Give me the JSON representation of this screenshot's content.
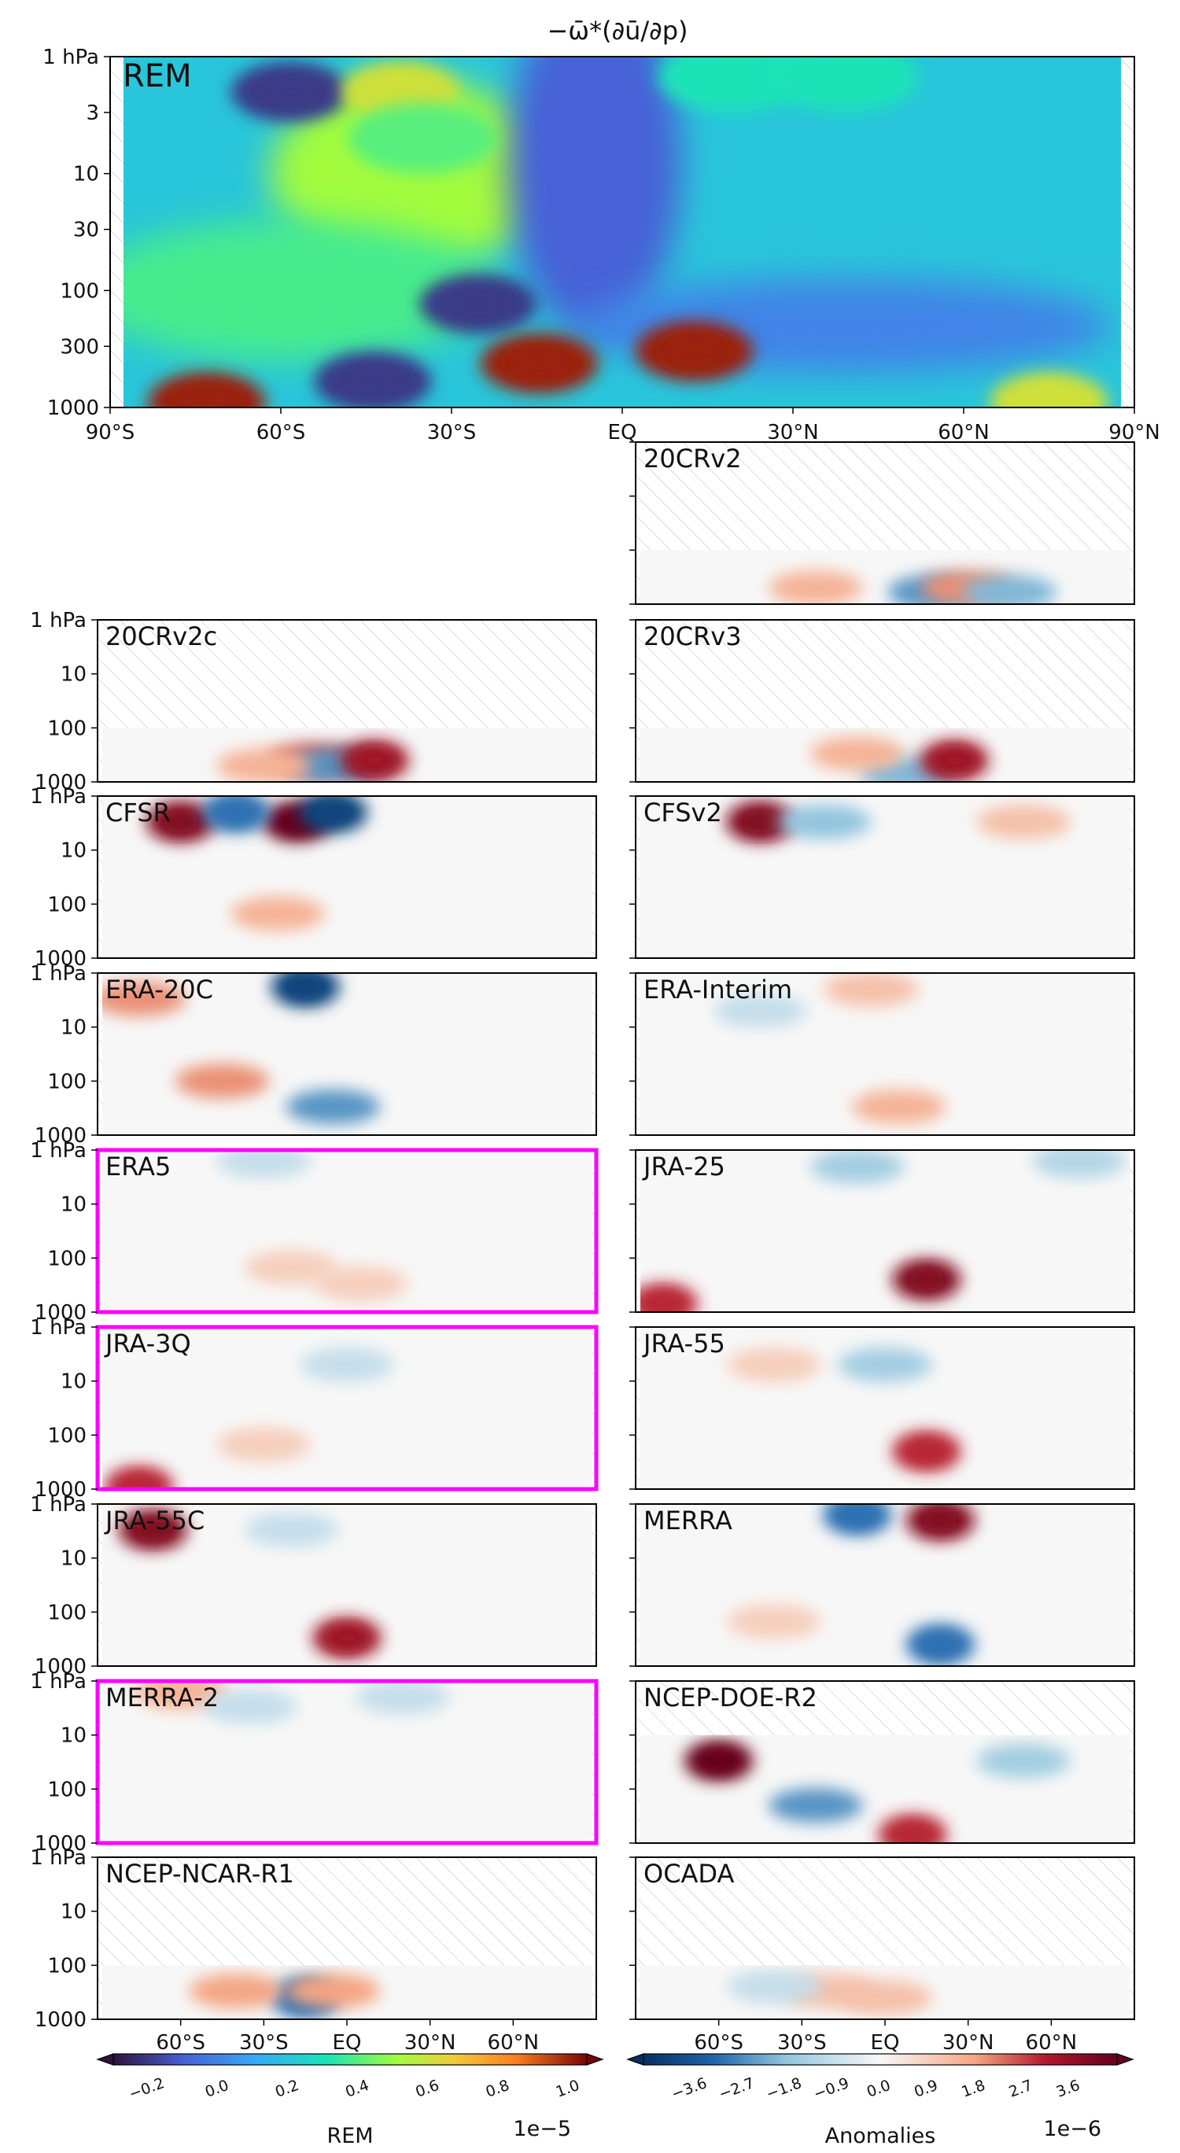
{
  "figure": {
    "title": "−ω̄*(∂ū/∂p)",
    "colors": {
      "highlight": "#ff00ff",
      "frame": "#000000",
      "hatch": "#bbbbbb"
    }
  },
  "chart_data": [
    {
      "type": "heatmap",
      "panel": "REM",
      "label": "REM",
      "label_color": "#ff00ff",
      "x_ticks": [
        "90°S",
        "60°S",
        "30°S",
        "EQ",
        "30°N",
        "60°N",
        "90°N"
      ],
      "y_ticks": [
        "1 hPa",
        "3",
        "10",
        "30",
        "100",
        "300",
        "1000"
      ],
      "xlim": [
        -90,
        90
      ],
      "ylim": [
        1000,
        1
      ],
      "y_scale": "log",
      "colormap": "rainbow",
      "features": [
        {
          "lat": -60,
          "p": 2,
          "value": -0.2
        },
        {
          "lat": -40,
          "p": 2,
          "value": 0.6
        },
        {
          "lat": -36,
          "p": 5,
          "value": 0.4
        },
        {
          "lat": -26,
          "p": 130,
          "value": -0.2
        },
        {
          "lat": -15,
          "p": 420,
          "value": 1.0
        },
        {
          "lat": 13,
          "p": 330,
          "value": 1.0
        },
        {
          "lat": -45,
          "p": 600,
          "value": -0.2
        },
        {
          "lat": -75,
          "p": 900,
          "value": 1.0
        },
        {
          "lat": 77,
          "p": 900,
          "value": 0.6
        },
        {
          "lat": 20,
          "p": 1.5,
          "value": 0.3
        },
        {
          "lat": 40,
          "p": 1.5,
          "value": 0.3
        }
      ]
    },
    {
      "type": "heatmap",
      "colormap": "RdBu_r",
      "x_ticks": [
        "60°S",
        "30°S",
        "EQ",
        "30°N",
        "60°N"
      ],
      "y_ticks": [
        "1 hPa",
        "10",
        "100",
        "1000"
      ],
      "panels": [
        {
          "label": "20CRv2",
          "highlight": false,
          "data_top_hPa": 100,
          "features": [
            {
              "lat": 18,
              "p": 600,
              "value": -2.5
            },
            {
              "lat": 30,
              "p": 500,
              "value": 2.0
            },
            {
              "lat": 45,
              "p": 600,
              "value": -2.0
            },
            {
              "lat": -25,
              "p": 500,
              "value": 1.5
            }
          ]
        },
        {
          "label": "20CRv2c",
          "highlight": false,
          "data_top_hPa": 100,
          "features": [
            {
              "lat": -12,
              "p": 400,
              "value": 2.5
            },
            {
              "lat": -4,
              "p": 500,
              "value": -2.5
            },
            {
              "lat": 10,
              "p": 400,
              "value": 3.5
            },
            {
              "lat": -30,
              "p": 500,
              "value": 1.5
            }
          ]
        },
        {
          "label": "20CRv3",
          "highlight": false,
          "data_top_hPa": 100,
          "features": [
            {
              "lat": 8,
              "p": 700,
              "value": -2.0
            },
            {
              "lat": 25,
              "p": 400,
              "value": 3.5
            },
            {
              "lat": -10,
              "p": 300,
              "value": 1.5
            }
          ]
        },
        {
          "label": "CFSR",
          "highlight": false,
          "data_top_hPa": 1,
          "features": [
            {
              "lat": -60,
              "p": 3,
              "value": 4.0
            },
            {
              "lat": -18,
              "p": 3,
              "value": 4.5
            },
            {
              "lat": -5,
              "p": 2,
              "value": -4.0
            },
            {
              "lat": -40,
              "p": 2,
              "value": -3.0
            },
            {
              "lat": -25,
              "p": 150,
              "value": 1.5
            }
          ]
        },
        {
          "label": "CFSv2",
          "highlight": false,
          "data_top_hPa": 1,
          "features": [
            {
              "lat": -45,
              "p": 3,
              "value": 4.0
            },
            {
              "lat": -22,
              "p": 3,
              "value": -1.8
            },
            {
              "lat": 50,
              "p": 3,
              "value": 1.2
            }
          ]
        },
        {
          "label": "ERA-20C",
          "highlight": false,
          "data_top_hPa": 1,
          "features": [
            {
              "lat": -15,
              "p": 1.8,
              "value": -4.0
            },
            {
              "lat": -75,
              "p": 3,
              "value": 2.0
            },
            {
              "lat": -45,
              "p": 100,
              "value": 2.0
            },
            {
              "lat": -5,
              "p": 300,
              "value": -2.5
            }
          ]
        },
        {
          "label": "ERA-Interim",
          "highlight": false,
          "data_top_hPa": 1,
          "features": [
            {
              "lat": -5,
              "p": 2,
              "value": 1.2
            },
            {
              "lat": 5,
              "p": 300,
              "value": 1.5
            },
            {
              "lat": -45,
              "p": 5,
              "value": -0.9
            }
          ]
        },
        {
          "label": "ERA5",
          "highlight": true,
          "data_top_hPa": 1,
          "features": [
            {
              "lat": -30,
              "p": 1.5,
              "value": -0.9
            },
            {
              "lat": -20,
              "p": 150,
              "value": 0.9
            },
            {
              "lat": 5,
              "p": 300,
              "value": 0.9
            }
          ]
        },
        {
          "label": "JRA-25",
          "highlight": false,
          "data_top_hPa": 1,
          "features": [
            {
              "lat": 15,
              "p": 250,
              "value": 4.0
            },
            {
              "lat": -10,
              "p": 2,
              "value": -1.5
            },
            {
              "lat": 70,
              "p": 1.5,
              "value": -1.2
            },
            {
              "lat": -80,
              "p": 700,
              "value": 3.0
            }
          ]
        },
        {
          "label": "JRA-3Q",
          "highlight": true,
          "data_top_hPa": 1,
          "features": [
            {
              "lat": 0,
              "p": 5,
              "value": -0.9
            },
            {
              "lat": -75,
              "p": 900,
              "value": 3.0
            },
            {
              "lat": -30,
              "p": 150,
              "value": 0.9
            }
          ]
        },
        {
          "label": "JRA-55",
          "highlight": false,
          "data_top_hPa": 1,
          "features": [
            {
              "lat": 15,
              "p": 200,
              "value": 3.0
            },
            {
              "lat": 0,
              "p": 5,
              "value": -1.5
            },
            {
              "lat": -40,
              "p": 5,
              "value": 0.9
            }
          ]
        },
        {
          "label": "JRA-55C",
          "highlight": false,
          "data_top_hPa": 1,
          "features": [
            {
              "lat": -70,
              "p": 3,
              "value": 4.0
            },
            {
              "lat": 0,
              "p": 300,
              "value": 3.5
            },
            {
              "lat": -20,
              "p": 3,
              "value": -0.9
            }
          ]
        },
        {
          "label": "MERRA",
          "highlight": false,
          "data_top_hPa": 1,
          "features": [
            {
              "lat": 20,
              "p": 2,
              "value": 4.0
            },
            {
              "lat": -10,
              "p": 1.5,
              "value": -3.0
            },
            {
              "lat": 20,
              "p": 400,
              "value": -3.0
            },
            {
              "lat": -40,
              "p": 150,
              "value": 0.9
            }
          ]
        },
        {
          "label": "MERRA-2",
          "highlight": true,
          "data_top_hPa": 1,
          "data_bottom_hPa": 500,
          "features": [
            {
              "lat": -60,
              "p": 1.5,
              "value": 1.5
            },
            {
              "lat": 20,
              "p": 2,
              "value": -0.9
            },
            {
              "lat": -35,
              "p": 3,
              "value": -0.9
            }
          ]
        },
        {
          "label": "NCEP-DOE-R2",
          "highlight": false,
          "data_top_hPa": 10,
          "features": [
            {
              "lat": -60,
              "p": 30,
              "value": 4.5
            },
            {
              "lat": -25,
              "p": 200,
              "value": -2.5
            },
            {
              "lat": 10,
              "p": 700,
              "value": 3.0
            },
            {
              "lat": 50,
              "p": 30,
              "value": -1.5
            }
          ]
        },
        {
          "label": "NCEP-NCAR-R1",
          "highlight": false,
          "data_top_hPa": 100,
          "features": [
            {
              "lat": -15,
              "p": 400,
              "value": -3.0
            },
            {
              "lat": -40,
              "p": 300,
              "value": 1.8
            },
            {
              "lat": -5,
              "p": 300,
              "value": 1.8
            }
          ]
        },
        {
          "label": "OCADA",
          "highlight": false,
          "data_top_hPa": 100,
          "data_bottom_hPa": 500,
          "features": [
            {
              "lat": -20,
              "p": 300,
              "value": 1.2
            },
            {
              "lat": 0,
              "p": 400,
              "value": 1.2
            },
            {
              "lat": -40,
              "p": 250,
              "value": -0.9
            }
          ]
        }
      ]
    },
    {
      "type": "colorbar",
      "label": "REM",
      "scale_label": "1e−5",
      "ticks": [
        "−0.2",
        "0.0",
        "0.2",
        "0.4",
        "0.6",
        "0.8",
        "1.0"
      ],
      "range": [
        -0.3,
        1.05
      ],
      "colormap": "rainbow"
    },
    {
      "type": "colorbar",
      "label": "Anomalies",
      "scale_label": "1e−6",
      "ticks": [
        "−3.6",
        "−2.7",
        "−1.8",
        "−0.9",
        "0.0",
        "0.9",
        "1.8",
        "2.7",
        "3.6"
      ],
      "range": [
        -4.5,
        4.5
      ],
      "colormap": "RdBu_r"
    }
  ]
}
